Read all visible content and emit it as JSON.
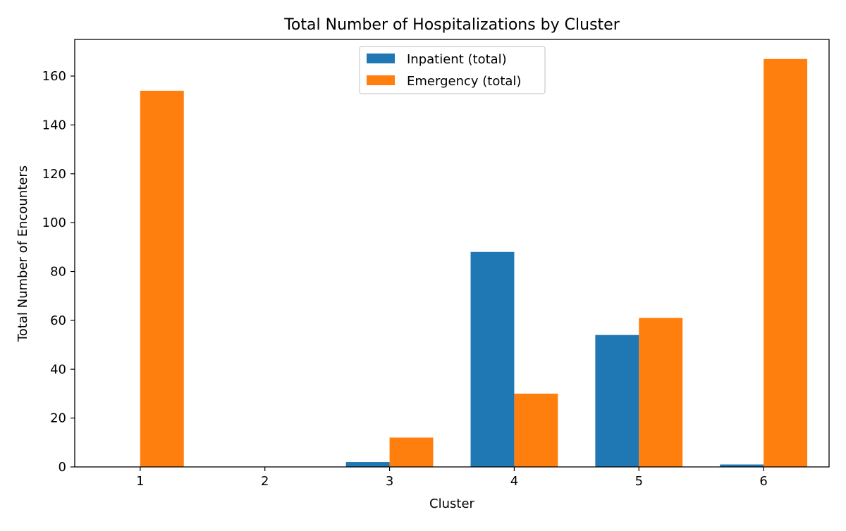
{
  "chart_data": {
    "type": "bar",
    "title": "Total Number of Hospitalizations by Cluster",
    "xlabel": "Cluster",
    "ylabel": "Total Number of Encounters",
    "categories": [
      "1",
      "2",
      "3",
      "4",
      "5",
      "6"
    ],
    "series": [
      {
        "name": "Inpatient (total)",
        "color": "#1f77b4",
        "values": [
          0,
          0,
          2,
          88,
          54,
          1
        ]
      },
      {
        "name": "Emergency (total)",
        "color": "#ff7f0e",
        "values": [
          154,
          0,
          12,
          30,
          61,
          167
        ]
      }
    ],
    "ylim": [
      0,
      175
    ],
    "yticks": [
      "0",
      "20",
      "40",
      "60",
      "80",
      "100",
      "120",
      "140",
      "160"
    ],
    "grid": false,
    "legend_position": "top-center"
  }
}
